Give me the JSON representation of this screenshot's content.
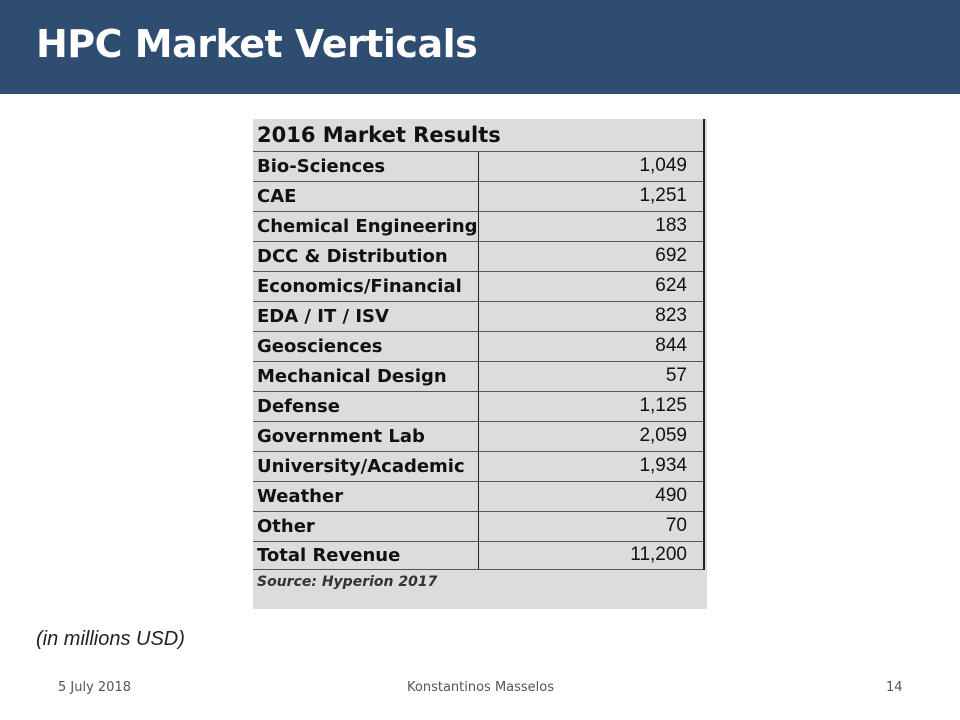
{
  "slide": {
    "title": "HPC Market Verticals",
    "note": "(in millions USD)"
  },
  "table": {
    "heading": "2016 Market Results",
    "rows": [
      {
        "label": "Bio-Sciences",
        "value": "1,049"
      },
      {
        "label": "CAE",
        "value": "1,251"
      },
      {
        "label": "Chemical Engineering",
        "value": "183"
      },
      {
        "label": "DCC & Distribution",
        "value": "692"
      },
      {
        "label": "Economics/Financial",
        "value": "624"
      },
      {
        "label": "EDA / IT / ISV",
        "value": "823"
      },
      {
        "label": "Geosciences",
        "value": "844"
      },
      {
        "label": "Mechanical Design",
        "value": "57"
      },
      {
        "label": "Defense",
        "value": "1,125"
      },
      {
        "label": "Government Lab",
        "value": "2,059"
      },
      {
        "label": "University/Academic",
        "value": "1,934"
      },
      {
        "label": "Weather",
        "value": "490"
      },
      {
        "label": "Other",
        "value": "70"
      }
    ],
    "total": {
      "label": "Total Revenue",
      "value": "11,200"
    },
    "source": "Source: Hyperion 2017"
  },
  "footer": {
    "date": "5 July 2018",
    "author": "Konstantinos Masselos",
    "page": "14"
  },
  "colors": {
    "header_bg": "#2f4d70",
    "table_bg": "#dcdcdc"
  }
}
